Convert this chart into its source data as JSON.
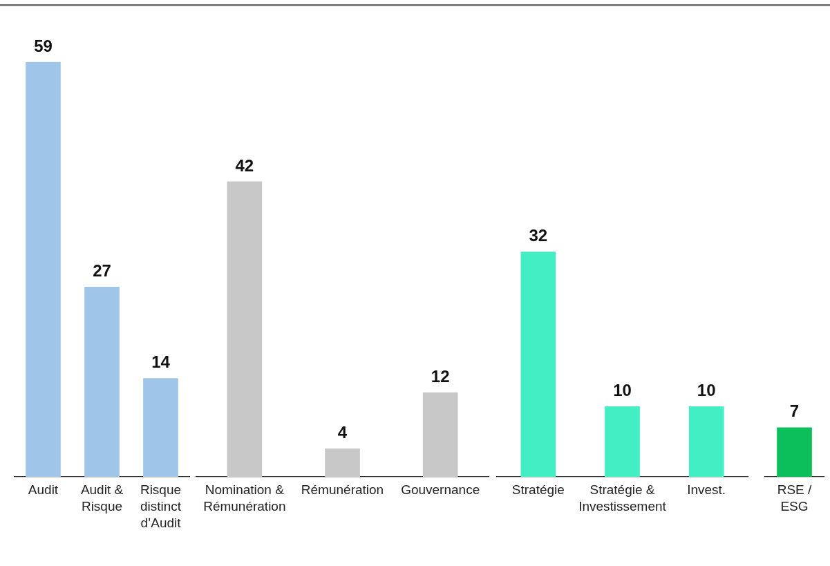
{
  "chart_data": [
    {
      "type": "bar",
      "categories": [
        "Audit",
        "Audit &\nRisque",
        "Risque\ndistinct\nd’Audit"
      ],
      "values": [
        59,
        27,
        14
      ],
      "color": "#9fc5e8",
      "data_labels": true,
      "grid": false,
      "legend": false
    },
    {
      "type": "bar",
      "categories": [
        "Nomination &\nRémunération",
        "Rémunération",
        "Gouvernance"
      ],
      "values": [
        42,
        4,
        12
      ],
      "color": "#c8c8c8",
      "data_labels": true,
      "grid": false,
      "legend": false
    },
    {
      "type": "bar",
      "categories": [
        "Stratégie",
        "Stratégie &\nInvestissement",
        "Invest."
      ],
      "values": [
        32,
        10,
        10
      ],
      "color": "#44eec4",
      "data_labels": true,
      "grid": false,
      "legend": false
    },
    {
      "type": "bar",
      "categories": [
        "RSE /\nESG"
      ],
      "values": [
        7
      ],
      "color": "#0dbf5a",
      "data_labels": true,
      "grid": false,
      "legend": false
    }
  ]
}
